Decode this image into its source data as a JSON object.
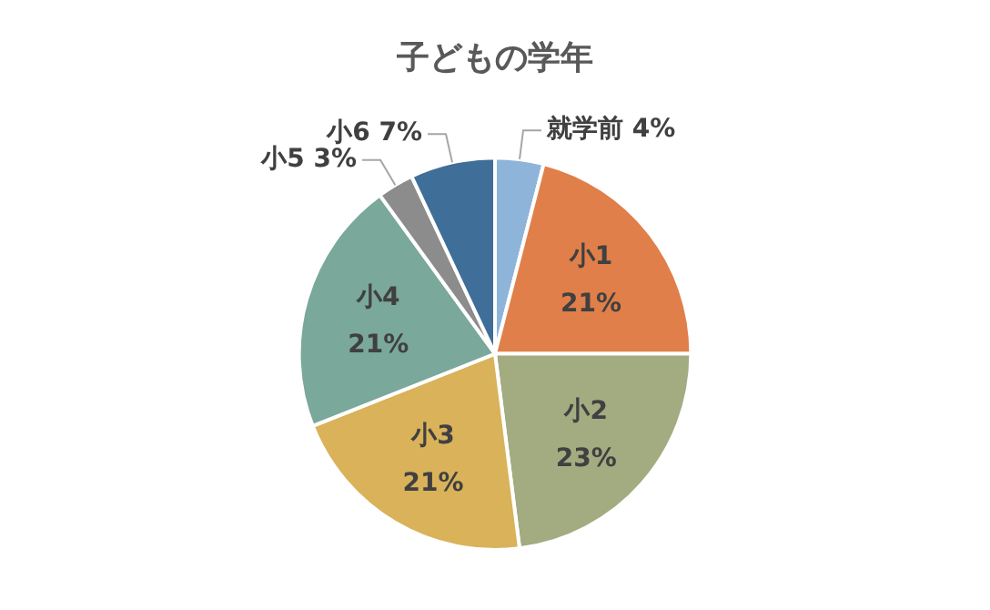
{
  "chart_data": {
    "type": "pie",
    "title": "子どもの学年",
    "categories": [
      "就学前",
      "小1",
      "小2",
      "小3",
      "小4",
      "小5",
      "小6"
    ],
    "values": [
      4,
      21,
      23,
      21,
      21,
      3,
      7
    ],
    "value_labels": [
      "4%",
      "21%",
      "23%",
      "21%",
      "21%",
      "3%",
      "7%"
    ],
    "colors": [
      "#8fb4d9",
      "#e07f4a",
      "#a3ab80",
      "#d9b25a",
      "#7aa89a",
      "#8c8c8c",
      "#3f6e99"
    ],
    "legend": false
  }
}
